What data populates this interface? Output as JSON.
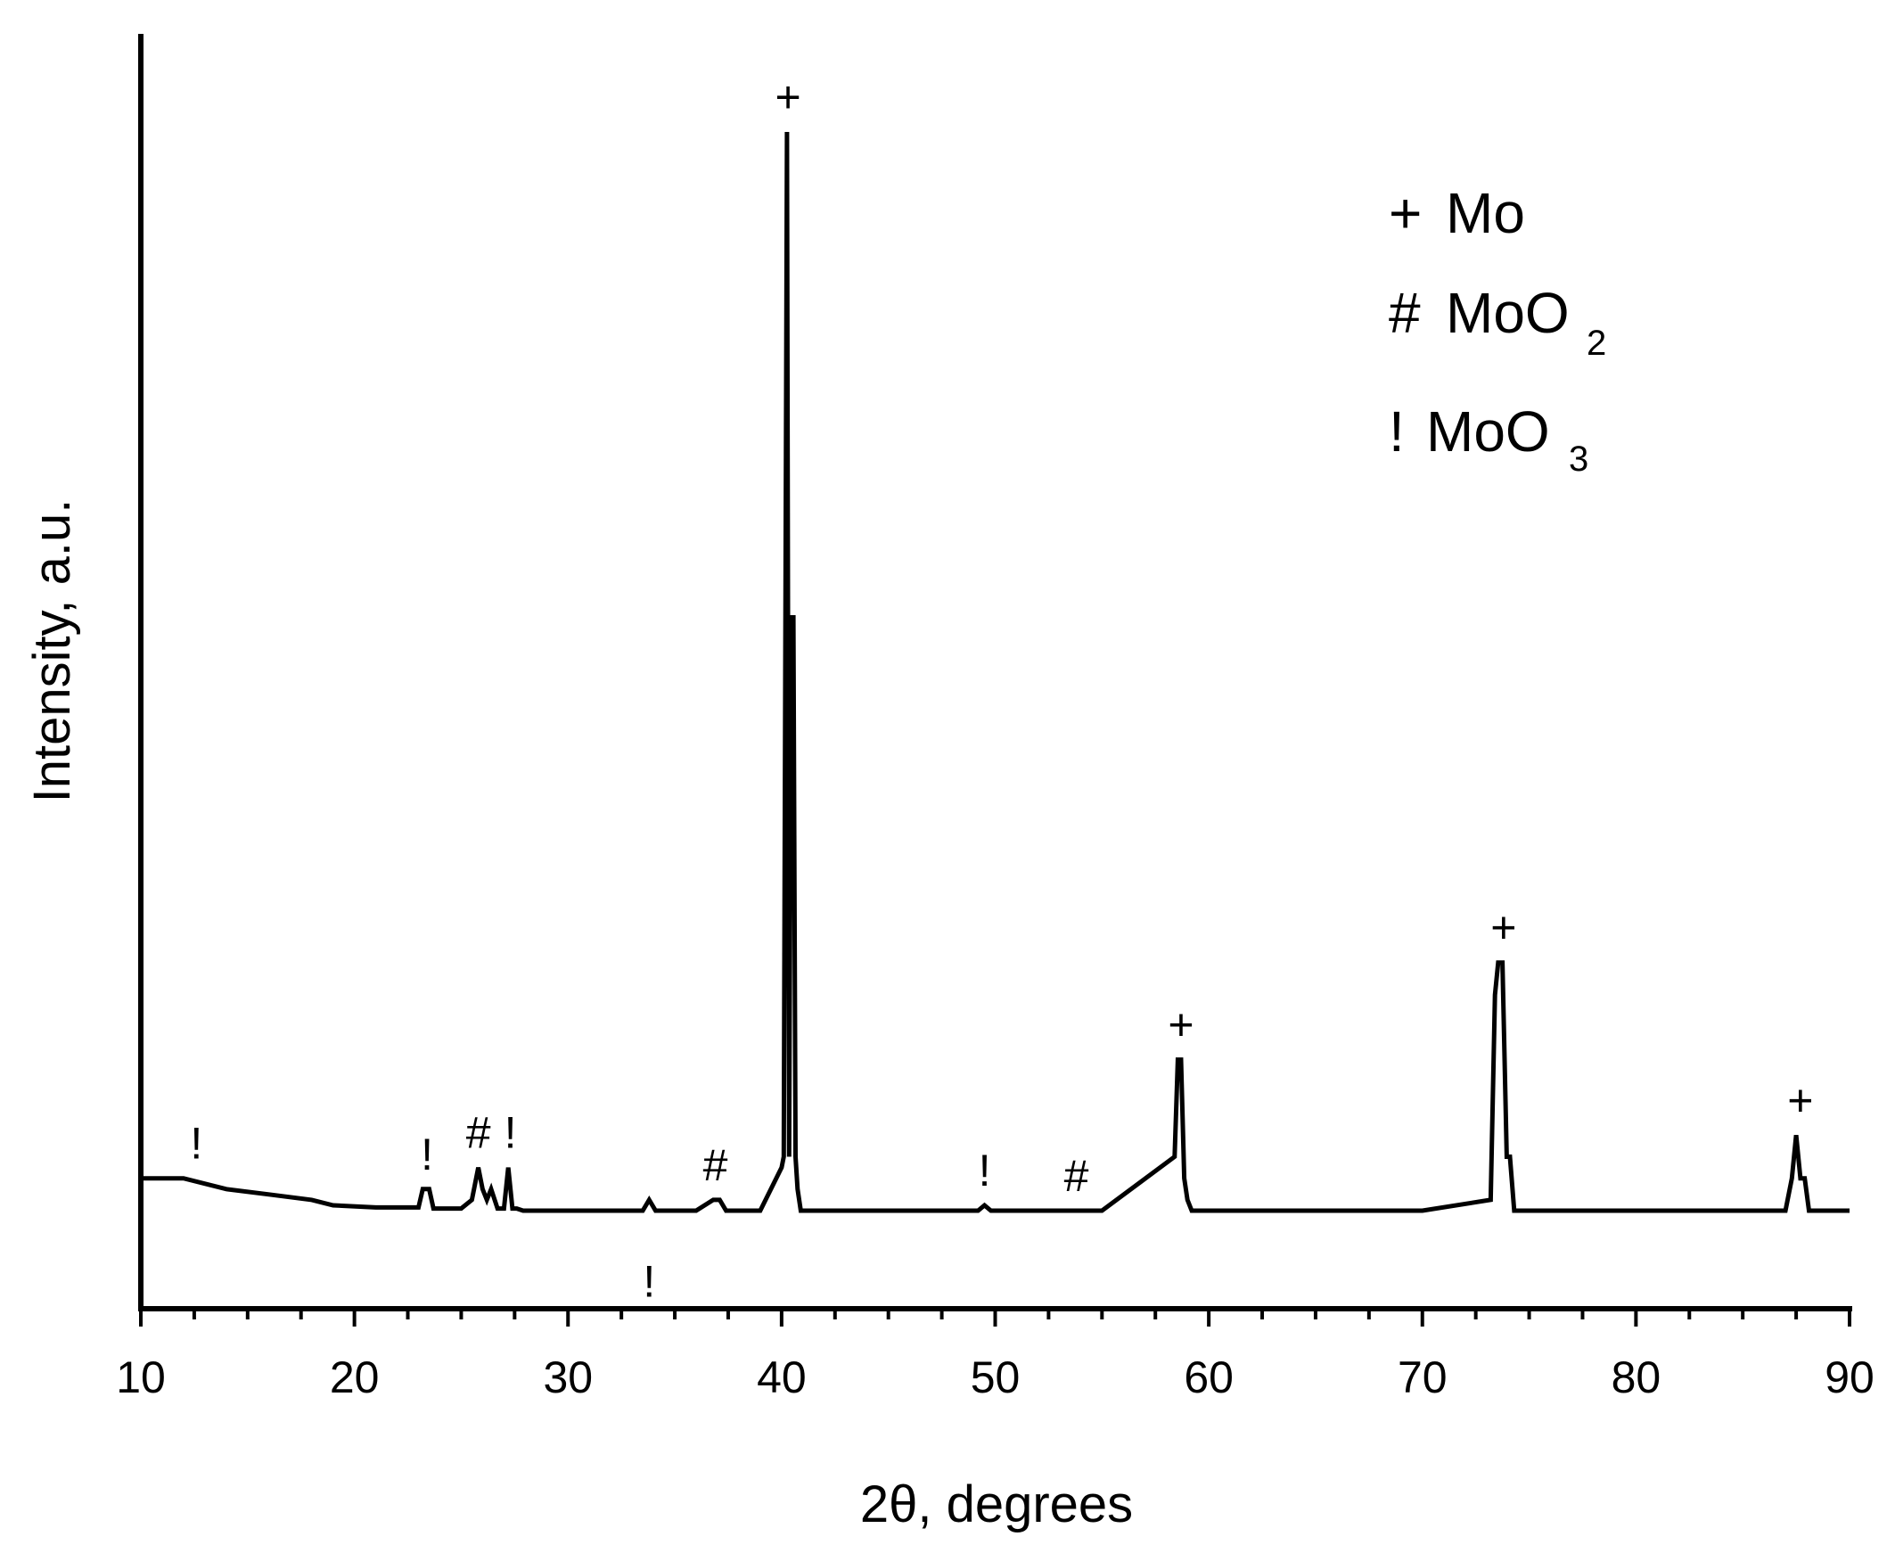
{
  "chart_data": {
    "type": "line",
    "title": "",
    "xlabel": "2θ, degrees",
    "ylabel": "Intensity, a.u.",
    "xlim": [
      10,
      90
    ],
    "ylim": [
      -0.1,
      1.1
    ],
    "xticks": [
      10,
      20,
      30,
      40,
      50,
      60,
      70,
      80,
      90
    ],
    "grid": false,
    "legend_position": "top-right",
    "legend": [
      {
        "symbol": "+",
        "phase": "Mo",
        "subscript": ""
      },
      {
        "symbol": "#",
        "phase": "MoO",
        "subscript": "2"
      },
      {
        "symbol": "!",
        "phase": "MoO",
        "subscript": "3"
      }
    ],
    "series": [
      {
        "x": [
          10,
          12,
          14,
          16,
          18,
          19,
          21,
          23,
          23.2,
          23.5,
          23.7,
          24,
          25,
          25.5,
          25.8,
          26,
          26.2,
          26.4,
          26.7,
          27,
          27.2,
          27.4,
          27.6,
          27.9,
          30,
          33.5,
          33.8,
          34.1,
          36,
          36.8,
          37.1,
          37.4,
          39,
          40,
          40.1,
          40.25,
          40.35,
          40.45,
          40.55,
          40.65,
          40.75,
          40.9,
          45,
          49.2,
          49.5,
          49.8,
          55,
          58.4,
          58.55,
          58.7,
          58.85,
          59,
          59.2,
          60,
          70,
          73.2,
          73.4,
          73.55,
          73.75,
          73.95,
          74.1,
          74.3,
          75,
          87,
          87.3,
          87.5,
          87.7,
          87.9,
          88.1,
          90
        ],
        "y": [
          0.03,
          0.03,
          0.02,
          0.015,
          0.01,
          0.005,
          0.003,
          0.003,
          0.02,
          0.02,
          0.002,
          0.002,
          0.002,
          0.01,
          0.04,
          0.02,
          0.01,
          0.02,
          0.002,
          0.002,
          0.04,
          0.002,
          0.002,
          0,
          0,
          0,
          0.01,
          0,
          0,
          0.01,
          0.01,
          0,
          0,
          0.04,
          0.05,
          1.0,
          0.05,
          0.55,
          0.55,
          0.05,
          0.02,
          0,
          0,
          0,
          0.005,
          0,
          0,
          0.05,
          0.14,
          0.14,
          0.03,
          0.01,
          0,
          0,
          0,
          0.01,
          0.2,
          0.23,
          0.23,
          0.05,
          0.05,
          0,
          0,
          0,
          0.03,
          0.07,
          0.03,
          0.03,
          0,
          0
        ]
      }
    ],
    "peak_markers": [
      {
        "label": "!",
        "x": 12.6,
        "y": 0.03
      },
      {
        "label": "!",
        "x": 23.4,
        "y": 0.02
      },
      {
        "label": "#",
        "x": 25.8,
        "y": 0.04
      },
      {
        "label": "!",
        "x": 27.3,
        "y": 0.04
      },
      {
        "label": "!",
        "x": 33.8,
        "y": -0.04
      },
      {
        "label": "#",
        "x": 36.9,
        "y": 0.01
      },
      {
        "label": "+",
        "x": 40.3,
        "y": 1.0
      },
      {
        "label": "!",
        "x": 49.5,
        "y": 0.005
      },
      {
        "label": "#",
        "x": 53.8,
        "y": 0.0
      },
      {
        "label": "+",
        "x": 58.7,
        "y": 0.14
      },
      {
        "label": "+",
        "x": 73.8,
        "y": 0.23
      },
      {
        "label": "+",
        "x": 87.7,
        "y": 0.07
      }
    ]
  }
}
